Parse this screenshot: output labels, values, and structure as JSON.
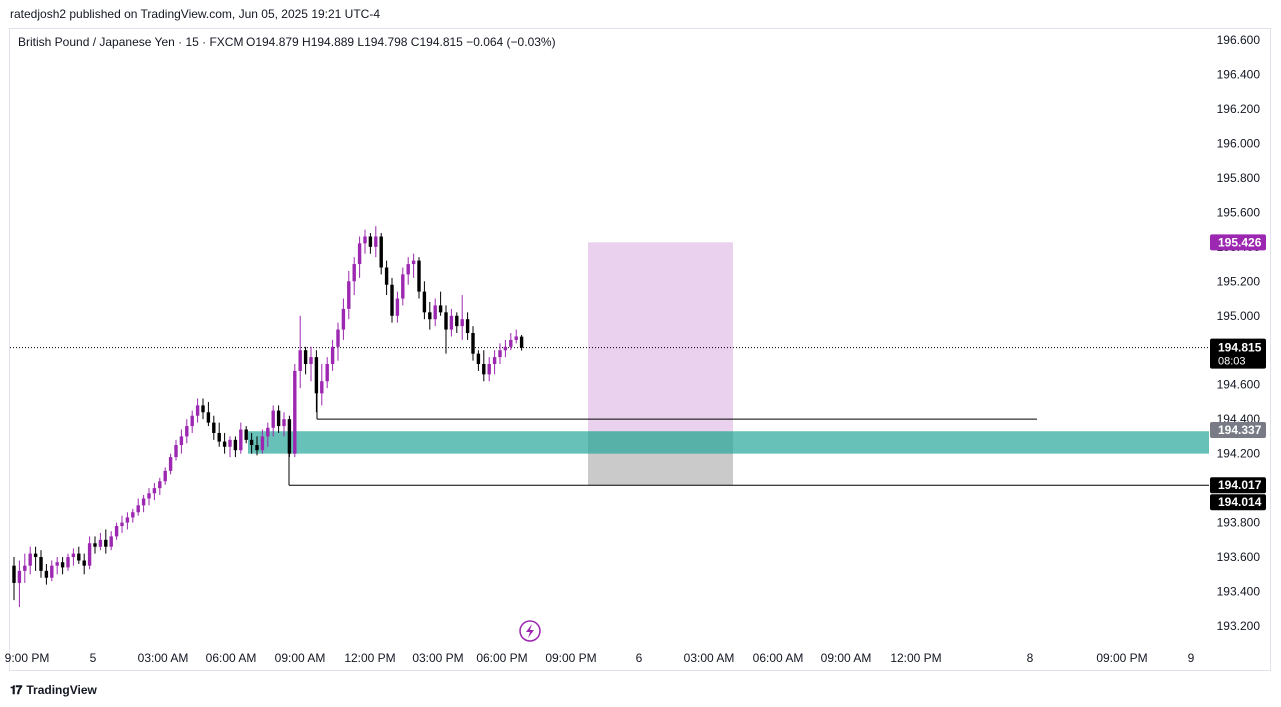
{
  "header": {
    "published_by": "ratedjosh2 published on TradingView.com, Jun 05, 2025 19:21 UTC-4"
  },
  "footer": {
    "brand": "TradingView",
    "logo_icon": "tradingview-logo-icon"
  },
  "colors": {
    "bull": "#9c27b0",
    "bear": "#000000",
    "zone_teal": "#26a69a",
    "zone_violet": "#e1bee7",
    "zone_gray": "#9e9e9e",
    "price_tag": "#000000",
    "target_tag": "#9c27b0",
    "mid_tag": "#787b86"
  },
  "chart_data": {
    "type": "candlestick",
    "title": "British Pound / Japanese Yen · 15 · FXCM",
    "ohlc_legend": {
      "open": "O194.879",
      "high": "H194.889",
      "low": "L194.798",
      "close": "C194.815",
      "change": "−0.064 (−0.03%)"
    },
    "ylim": [
      193.1,
      196.7
    ],
    "y_ticks": [
      "196.600",
      "196.400",
      "196.200",
      "196.000",
      "195.800",
      "195.600",
      "195.400",
      "195.200",
      "195.000",
      "194.800",
      "194.600",
      "194.400",
      "194.200",
      "194.000",
      "193.800",
      "193.600",
      "193.400",
      "193.200"
    ],
    "x_ticks": [
      "9:00 PM",
      "5",
      "03:00 AM",
      "06:00 AM",
      "09:00 AM",
      "12:00 PM",
      "03:00 PM",
      "06:00 PM",
      "09:00 PM",
      "6",
      "03:00 AM",
      "06:00 AM",
      "09:00 AM",
      "12:00 PM",
      "8",
      "09:00 PM",
      "9"
    ],
    "candles": [
      [
        193.55,
        193.6,
        193.35,
        193.45
      ],
      [
        193.45,
        193.58,
        193.31,
        193.52
      ],
      [
        193.52,
        193.62,
        193.45,
        193.55
      ],
      [
        193.55,
        193.66,
        193.5,
        193.62
      ],
      [
        193.62,
        193.66,
        193.52,
        193.6
      ],
      [
        193.6,
        193.64,
        193.48,
        193.52
      ],
      [
        193.52,
        193.56,
        193.44,
        193.48
      ],
      [
        193.48,
        193.58,
        193.46,
        193.55
      ],
      [
        193.55,
        193.6,
        193.5,
        193.57
      ],
      [
        193.57,
        193.6,
        193.5,
        193.54
      ],
      [
        193.54,
        193.62,
        193.52,
        193.6
      ],
      [
        193.6,
        193.65,
        193.55,
        193.62
      ],
      [
        193.62,
        193.66,
        193.56,
        193.58
      ],
      [
        193.58,
        193.62,
        193.5,
        193.55
      ],
      [
        193.55,
        193.72,
        193.53,
        193.68
      ],
      [
        193.68,
        193.72,
        193.62,
        193.66
      ],
      [
        193.66,
        193.74,
        193.64,
        193.7
      ],
      [
        193.7,
        193.76,
        193.62,
        193.66
      ],
      [
        193.66,
        193.75,
        193.64,
        193.72
      ],
      [
        193.72,
        193.8,
        193.7,
        193.78
      ],
      [
        193.78,
        193.84,
        193.74,
        193.8
      ],
      [
        193.8,
        193.86,
        193.76,
        193.83
      ],
      [
        193.83,
        193.88,
        193.8,
        193.86
      ],
      [
        193.86,
        193.94,
        193.84,
        193.9
      ],
      [
        193.9,
        193.96,
        193.86,
        193.94
      ],
      [
        193.94,
        194.0,
        193.9,
        193.97
      ],
      [
        193.97,
        194.03,
        193.93,
        194.0
      ],
      [
        194.0,
        194.06,
        193.96,
        194.04
      ],
      [
        194.04,
        194.12,
        194.02,
        194.1
      ],
      [
        194.1,
        194.2,
        194.08,
        194.18
      ],
      [
        194.18,
        194.28,
        194.16,
        194.25
      ],
      [
        194.25,
        194.34,
        194.2,
        194.3
      ],
      [
        194.3,
        194.4,
        194.26,
        194.36
      ],
      [
        194.36,
        194.45,
        194.32,
        194.42
      ],
      [
        194.42,
        194.52,
        194.38,
        194.48
      ],
      [
        194.48,
        194.52,
        194.4,
        194.44
      ],
      [
        194.44,
        194.5,
        194.36,
        194.38
      ],
      [
        194.38,
        194.42,
        194.28,
        194.32
      ],
      [
        194.32,
        194.38,
        194.24,
        194.27
      ],
      [
        194.27,
        194.32,
        194.2,
        194.24
      ],
      [
        194.24,
        194.3,
        194.18,
        194.28
      ],
      [
        194.28,
        194.3,
        194.18,
        194.22
      ],
      [
        194.22,
        194.38,
        194.2,
        194.34
      ],
      [
        194.34,
        194.36,
        194.26,
        194.28
      ],
      [
        194.28,
        194.32,
        194.2,
        194.25
      ],
      [
        194.25,
        194.3,
        194.19,
        194.22
      ],
      [
        194.22,
        194.34,
        194.2,
        194.3
      ],
      [
        194.3,
        194.38,
        194.24,
        194.35
      ],
      [
        194.35,
        194.48,
        194.3,
        194.45
      ],
      [
        194.45,
        194.48,
        194.32,
        194.36
      ],
      [
        194.36,
        194.44,
        194.3,
        194.4
      ],
      [
        194.4,
        194.42,
        194.18,
        194.2
      ],
      [
        194.2,
        194.72,
        194.18,
        194.68
      ],
      [
        194.68,
        195.0,
        194.58,
        194.8
      ],
      [
        194.8,
        194.82,
        194.66,
        194.72
      ],
      [
        194.72,
        194.82,
        194.62,
        194.76
      ],
      [
        194.76,
        194.8,
        194.44,
        194.55
      ],
      [
        194.55,
        194.72,
        194.48,
        194.62
      ],
      [
        194.62,
        194.76,
        194.58,
        194.72
      ],
      [
        194.72,
        194.86,
        194.68,
        194.82
      ],
      [
        194.82,
        194.96,
        194.74,
        194.92
      ],
      [
        194.92,
        195.1,
        194.86,
        195.04
      ],
      [
        195.04,
        195.26,
        194.98,
        195.2
      ],
      [
        195.2,
        195.34,
        195.12,
        195.3
      ],
      [
        195.3,
        195.46,
        195.22,
        195.42
      ],
      [
        195.42,
        195.5,
        195.36,
        195.46
      ],
      [
        195.46,
        195.48,
        195.36,
        195.4
      ],
      [
        195.4,
        195.52,
        195.34,
        195.46
      ],
      [
        195.46,
        195.48,
        195.24,
        195.28
      ],
      [
        195.28,
        195.32,
        195.12,
        195.18
      ],
      [
        195.18,
        195.22,
        194.96,
        195.0
      ],
      [
        195.0,
        195.14,
        194.96,
        195.1
      ],
      [
        195.1,
        195.28,
        195.06,
        195.24
      ],
      [
        195.24,
        195.34,
        195.18,
        195.3
      ],
      [
        195.3,
        195.36,
        195.22,
        195.32
      ],
      [
        195.32,
        195.34,
        195.1,
        195.14
      ],
      [
        195.14,
        195.2,
        194.98,
        195.02
      ],
      [
        195.02,
        195.08,
        194.92,
        194.98
      ],
      [
        194.98,
        195.1,
        194.94,
        195.06
      ],
      [
        195.06,
        195.14,
        195.0,
        195.02
      ],
      [
        195.02,
        195.06,
        194.78,
        194.92
      ],
      [
        194.92,
        195.04,
        194.88,
        195.0
      ],
      [
        195.0,
        195.02,
        194.9,
        194.94
      ],
      [
        194.94,
        195.12,
        194.86,
        194.98
      ],
      [
        194.98,
        195.02,
        194.86,
        194.9
      ],
      [
        194.9,
        194.94,
        194.74,
        194.78
      ],
      [
        194.78,
        194.8,
        194.68,
        194.72
      ],
      [
        194.72,
        194.8,
        194.62,
        194.66
      ],
      [
        194.66,
        194.76,
        194.62,
        194.72
      ],
      [
        194.72,
        194.8,
        194.66,
        194.76
      ],
      [
        194.76,
        194.84,
        194.72,
        194.8
      ],
      [
        194.8,
        194.86,
        194.76,
        194.82
      ],
      [
        194.82,
        194.9,
        194.8,
        194.86
      ],
      [
        194.86,
        194.92,
        194.84,
        194.88
      ],
      [
        194.879,
        194.889,
        194.798,
        194.815
      ]
    ],
    "zones": {
      "support_zone": {
        "from": 194.2,
        "to": 194.33
      },
      "target_zone": {
        "from": 194.33,
        "to": 195.426
      },
      "stop_zone": {
        "from": 194.017,
        "to": 194.33
      }
    },
    "horizontal_lines": [
      {
        "name": "upper-level-line",
        "value": 194.4
      },
      {
        "name": "lower-level-line",
        "value": 194.017
      }
    ],
    "price_tags": [
      {
        "name": "target-price-tag",
        "value": "195.426"
      },
      {
        "name": "current-price-tag",
        "value": "194.815",
        "sub": "08:03"
      },
      {
        "name": "mid-price-tag",
        "value": "194.337"
      },
      {
        "name": "level-price-tag-1",
        "value": "194.017"
      },
      {
        "name": "level-price-tag-2",
        "value": "194.014"
      }
    ],
    "grid": false
  }
}
